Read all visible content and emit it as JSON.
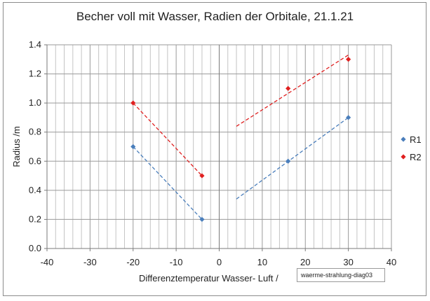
{
  "chart_data": {
    "type": "scatter",
    "title": "Becher voll mit Wasser, Radien der Orbitale, 21.1.21",
    "xlabel": "Differenztemperatur Wasser- Luft /",
    "ylabel": "Radius /m",
    "xlim": [
      -40,
      40
    ],
    "ylim": [
      0,
      1.4
    ],
    "xticks": [
      -40,
      -30,
      -20,
      -10,
      0,
      10,
      20,
      30,
      40
    ],
    "xtick_labels": [
      "-40",
      "-30",
      "-20",
      "-10",
      "0",
      "10",
      "20",
      "30",
      "40"
    ],
    "yticks": [
      0,
      0.2,
      0.4,
      0.6,
      0.8,
      1.0,
      1.2,
      1.4
    ],
    "ytick_labels": [
      "0.0",
      "0.2",
      "0.4",
      "0.6",
      "0.8",
      "1.0",
      "1.2",
      "1.4"
    ],
    "grid": true,
    "legend_position": "right",
    "series": [
      {
        "name": "R1",
        "color": "#4a7ebb",
        "points": [
          {
            "x": -20,
            "y": 0.7
          },
          {
            "x": -4,
            "y": 0.2
          },
          {
            "x": 16,
            "y": 0.6
          },
          {
            "x": 30,
            "y": 0.9
          }
        ],
        "trendlines": [
          {
            "x": [
              -20,
              -4
            ],
            "y": [
              0.7,
              0.2
            ]
          },
          {
            "x": [
              4,
              30
            ],
            "y": [
              0.34,
              0.9
            ]
          }
        ]
      },
      {
        "name": "R2",
        "color": "#e02020",
        "points": [
          {
            "x": -20,
            "y": 1.0
          },
          {
            "x": -4,
            "y": 0.5
          },
          {
            "x": 16,
            "y": 1.1
          },
          {
            "x": 30,
            "y": 1.3
          }
        ],
        "trendlines": [
          {
            "x": [
              -20,
              -4
            ],
            "y": [
              1.0,
              0.5
            ]
          },
          {
            "x": [
              4,
              30
            ],
            "y": [
              0.84,
              1.33
            ]
          }
        ]
      }
    ]
  },
  "image_tag": "waerme-strahlung-diag03"
}
